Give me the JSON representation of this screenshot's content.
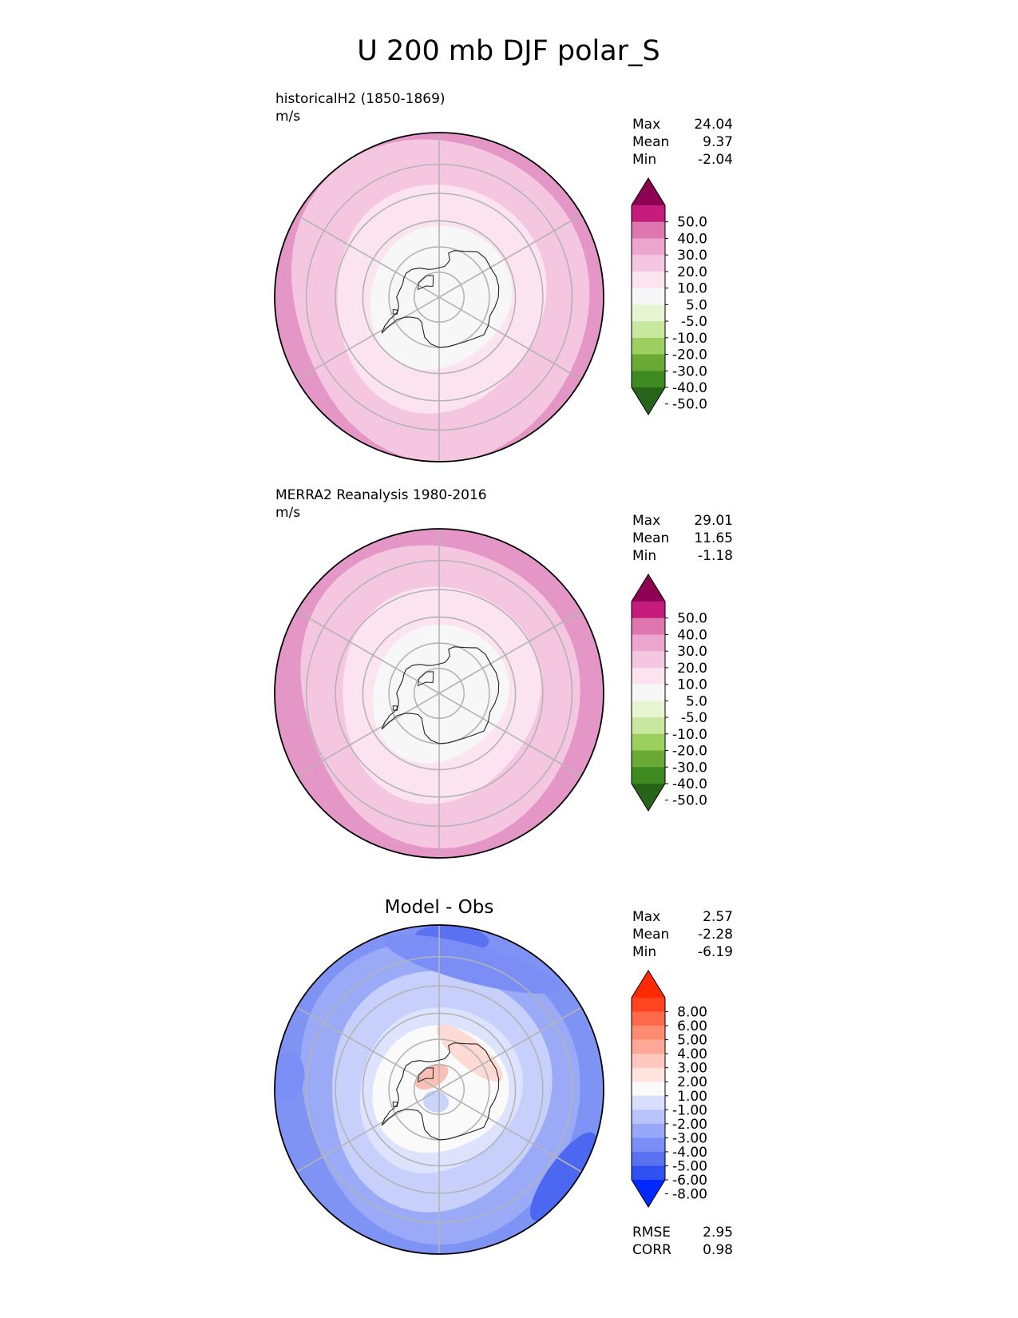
{
  "figure_title": "U 200 mb DJF polar_S",
  "chart_data": [
    {
      "type": "heatmap",
      "projection": "south-polar-stereographic",
      "panel_label": "historicalH2 (1850-1869)",
      "units": "m/s",
      "stats": [
        {
          "label": "Max",
          "value": "24.04"
        },
        {
          "label": "Mean",
          "value": "9.37"
        },
        {
          "label": "Min",
          "value": "-2.04"
        }
      ],
      "colorbar": {
        "ticks": [
          "50.0",
          "40.0",
          "30.0",
          "20.0",
          "10.0",
          "5.0",
          "-5.0",
          "-10.0",
          "-20.0",
          "-30.0",
          "-40.0",
          "-50.0"
        ],
        "colors": [
          "#8e0152",
          "#c51b7d",
          "#de77ae",
          "#eca5cd",
          "#f5c6e0",
          "#fbe3ef",
          "#f7f7f7",
          "#e8f5d3",
          "#c8e8a0",
          "#9bcf5f",
          "#6aa936",
          "#3f8a20",
          "#27641a"
        ]
      },
      "rings": [
        {
          "lat": -30,
          "color": "#e497c6"
        },
        {
          "lat": -33,
          "color": "#f5c6e0"
        },
        {
          "lat": -48,
          "color": "#fbe3ef"
        },
        {
          "lat": -62,
          "color": "#f7f7f7"
        }
      ]
    },
    {
      "type": "heatmap",
      "projection": "south-polar-stereographic",
      "panel_label": "MERRA2 Reanalysis 1980-2016",
      "units": "m/s",
      "stats": [
        {
          "label": "Max",
          "value": "29.01"
        },
        {
          "label": "Mean",
          "value": "11.65"
        },
        {
          "label": "Min",
          "value": "-1.18"
        }
      ],
      "colorbar": {
        "ticks": [
          "50.0",
          "40.0",
          "30.0",
          "20.0",
          "10.0",
          "5.0",
          "-5.0",
          "-10.0",
          "-20.0",
          "-30.0",
          "-40.0",
          "-50.0"
        ],
        "colors": [
          "#8e0152",
          "#c51b7d",
          "#de77ae",
          "#eca5cd",
          "#f5c6e0",
          "#fbe3ef",
          "#f7f7f7",
          "#e8f5d3",
          "#c8e8a0",
          "#9bcf5f",
          "#6aa936",
          "#3f8a20",
          "#27641a"
        ]
      },
      "rings": [
        {
          "lat": -30,
          "color": "#e497c6"
        },
        {
          "lat": -36,
          "color": "#f5c6e0"
        },
        {
          "lat": -50,
          "color": "#fbe3ef"
        },
        {
          "lat": -63,
          "color": "#f7f7f7"
        }
      ]
    },
    {
      "type": "heatmap",
      "projection": "south-polar-stereographic",
      "title": "Model - Obs",
      "stats": [
        {
          "label": "Max",
          "value": "2.57"
        },
        {
          "label": "Mean",
          "value": "-2.28"
        },
        {
          "label": "Min",
          "value": "-6.19"
        }
      ],
      "metrics": [
        {
          "label": "RMSE",
          "value": "2.95"
        },
        {
          "label": "CORR",
          "value": "0.98"
        }
      ],
      "colorbar": {
        "ticks": [
          "8.00",
          "6.00",
          "5.00",
          "4.00",
          "3.00",
          "2.00",
          "1.00",
          "-1.00",
          "-2.00",
          "-3.00",
          "-4.00",
          "-5.00",
          "-6.00",
          "-8.00"
        ],
        "colors": [
          "#ff2a00",
          "#ff4422",
          "#ff6a4a",
          "#ff8c72",
          "#ffa898",
          "#ffc8be",
          "#fde4de",
          "#fafafa",
          "#d8defd",
          "#b8c4fb",
          "#98a8f8",
          "#7a8ef5",
          "#5a72f2",
          "#3050f0",
          "#0028ff"
        ]
      },
      "rings": [
        {
          "lat": -30,
          "color": "#7f93f4"
        },
        {
          "lat": -36,
          "color": "#9aaaf7"
        },
        {
          "lat": -46,
          "color": "#c6d0fb"
        },
        {
          "lat": -58,
          "color": "#dde3fd"
        },
        {
          "lat": -64,
          "color": "#fafafa"
        }
      ],
      "blobs": [
        {
          "lon": 55,
          "lat": -34,
          "rlat": 4,
          "rlon": 20,
          "color": "#4d68f0"
        },
        {
          "lon": 175,
          "lat": -34,
          "rlat": 3,
          "rlon": 14,
          "color": "#5a72f2"
        },
        {
          "lon": -95,
          "lat": -34,
          "rlat": 4,
          "rlon": 9,
          "color": "#7a8ef5"
        },
        {
          "lon": 165,
          "lat": -41,
          "rlat": 5,
          "rlon": 40,
          "color": "#7a8ef5"
        },
        {
          "lon": 140,
          "lat": -71,
          "rlat": 4,
          "rlon": 50,
          "color": "#fddbd4"
        },
        {
          "lon": -150,
          "lat": -84,
          "rlat": 3,
          "rlon": 70,
          "color": "#fbbfb4"
        },
        {
          "lon": -15,
          "lat": -85,
          "rlat": 3,
          "rlon": 60,
          "color": "#c9d3fb"
        }
      ]
    }
  ]
}
